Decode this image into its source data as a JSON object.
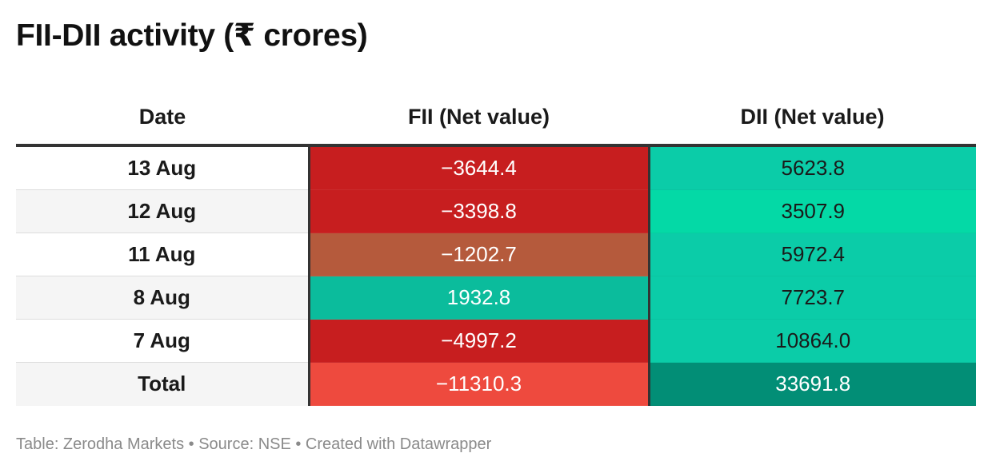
{
  "title": "FII-DII activity (₹ crores)",
  "footer": "Table: Zerodha Markets • Source: NSE • Created with Datawrapper",
  "chart_data": {
    "type": "table",
    "columns": [
      "Date",
      "FII (Net value)",
      "DII (Net value)"
    ],
    "rows": [
      {
        "date": "13 Aug",
        "fii": "−3644.4",
        "dii": "5623.8",
        "fii_color": "#c71e1f",
        "dii_color": "#0bcca8"
      },
      {
        "date": "12 Aug",
        "fii": "−3398.8",
        "dii": "3507.9",
        "fii_color": "#c71e1f",
        "dii_color": "#04d9a6"
      },
      {
        "date": "11 Aug",
        "fii": "−1202.7",
        "dii": "5972.4",
        "fii_color": "#b55a3c",
        "dii_color": "#0bcca8"
      },
      {
        "date": "8 Aug",
        "fii": "1932.8",
        "dii": "7723.7",
        "fii_color": "#0bbc9c",
        "dii_color": "#0bcca8"
      },
      {
        "date": "7 Aug",
        "fii": "−4997.2",
        "dii": "10864.0",
        "fii_color": "#c71e1f",
        "dii_color": "#0bcca8"
      },
      {
        "date": "Total",
        "fii": "−11310.3",
        "dii": "33691.8",
        "fii_color": "#ee4a3e",
        "dii_color": "#028e76"
      }
    ]
  }
}
